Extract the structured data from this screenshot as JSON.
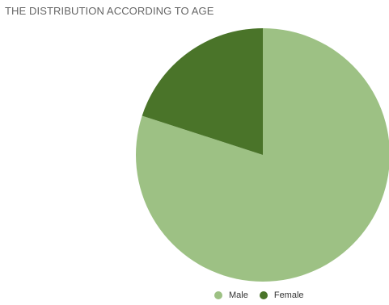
{
  "chart_data": {
    "type": "pie",
    "title": "THE DISTRIBUTION ACCORDING TO AGE",
    "categories": [
      "Male",
      "Female"
    ],
    "values": [
      80,
      20
    ],
    "colors": [
      "#9dc184",
      "#4a7429"
    ],
    "legend_position": "bottom"
  }
}
